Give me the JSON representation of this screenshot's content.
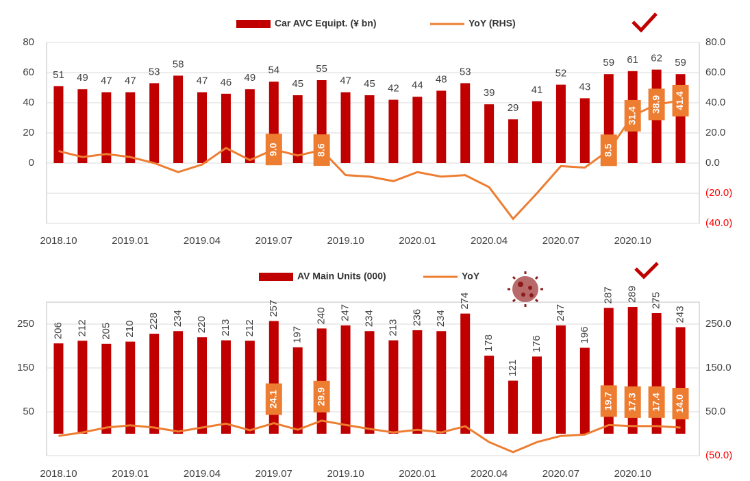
{
  "chart_data": [
    {
      "type": "bar",
      "categories": [
        "2018.10",
        null,
        null,
        "2019.01",
        null,
        null,
        "2019.04",
        null,
        null,
        "2019.07",
        null,
        null,
        "2019.10",
        null,
        null,
        "2020.01",
        null,
        null,
        "2020.04",
        null,
        null,
        "2020.07",
        null,
        null,
        "2020.10",
        null,
        null
      ],
      "series": [
        {
          "name": "Car AVC Equipt. (¥ bn)",
          "type": "bar",
          "color": "#c00000",
          "values": [
            51,
            49,
            47,
            47,
            53,
            58,
            47,
            46,
            49,
            54,
            45,
            55,
            47,
            45,
            42,
            44,
            48,
            53,
            39,
            29,
            41,
            52,
            43,
            59,
            61,
            62,
            59
          ]
        },
        {
          "name": "YoY (RHS)",
          "type": "line",
          "axis": "y2",
          "color": "#ed7d31",
          "values": [
            8,
            4,
            6,
            4,
            0,
            -6,
            -1,
            10,
            2,
            9,
            5,
            8.6,
            -8,
            -9,
            -12,
            -6,
            -9,
            -8,
            -16,
            -37,
            -20,
            -2,
            -3,
            8.5,
            31.4,
            38.9,
            41.4
          ],
          "value_labels": [
            null,
            null,
            null,
            null,
            null,
            null,
            null,
            null,
            null,
            "9.0",
            null,
            "8.6",
            null,
            null,
            null,
            null,
            null,
            null,
            null,
            null,
            null,
            null,
            null,
            "8.5",
            "31.4",
            "38.9",
            "41.4"
          ]
        }
      ],
      "ylim": [
        -40,
        80
      ],
      "yticks": [
        0,
        20,
        40,
        60,
        80
      ],
      "y2lim": [
        -40,
        80
      ],
      "y2ticks": [
        {
          "value": -40,
          "label": "(40.0)"
        },
        {
          "value": -20,
          "label": "(20.0)"
        },
        {
          "value": 0,
          "label": "0.0"
        },
        {
          "value": 20,
          "label": "20.0"
        },
        {
          "value": 40,
          "label": "40.0"
        },
        {
          "value": 60,
          "label": "60.0"
        },
        {
          "value": 80,
          "label": "80.0"
        }
      ],
      "grid": true,
      "legend": "top"
    },
    {
      "type": "bar",
      "categories": [
        "2018.10",
        null,
        null,
        "2019.01",
        null,
        null,
        "2019.04",
        null,
        null,
        "2019.07",
        null,
        null,
        "2019.10",
        null,
        null,
        "2020.01",
        null,
        null,
        "2020.04",
        null,
        null,
        "2020.07",
        null,
        null,
        "2020.10",
        null,
        null
      ],
      "series": [
        {
          "name": "AV Main Units (000)",
          "type": "bar",
          "color": "#c00000",
          "values": [
            206,
            212,
            205,
            210,
            228,
            234,
            220,
            213,
            212,
            257,
            197,
            240,
            247,
            234,
            213,
            236,
            234,
            274,
            178,
            121,
            176,
            247,
            196,
            287,
            289,
            275,
            243
          ]
        },
        {
          "name": "YoY",
          "type": "line",
          "axis": "y2",
          "color": "#ed7d31",
          "values": [
            -5,
            3,
            14,
            19,
            14,
            5,
            14,
            23,
            8,
            24.1,
            9,
            29.9,
            20,
            11,
            3,
            9,
            3,
            17,
            -19,
            -42,
            -19,
            -5,
            -2,
            19.7,
            17.3,
            17.4,
            14
          ],
          "value_labels": [
            null,
            null,
            null,
            null,
            null,
            null,
            null,
            null,
            null,
            "24.1",
            null,
            "29.9",
            null,
            null,
            null,
            null,
            null,
            null,
            null,
            null,
            null,
            null,
            null,
            "19.7",
            "17.3",
            "17.4",
            "14.0"
          ]
        }
      ],
      "ylim": [
        -50,
        300
      ],
      "yticks": [
        50,
        150,
        250
      ],
      "y2lim": [
        -50,
        300
      ],
      "y2ticks": [
        {
          "value": -50,
          "label": "(50.0)"
        },
        {
          "value": 50,
          "label": "50.0"
        },
        {
          "value": 150,
          "label": "150.0"
        },
        {
          "value": 250,
          "label": "250.0"
        }
      ],
      "grid": true,
      "legend": "top"
    }
  ]
}
